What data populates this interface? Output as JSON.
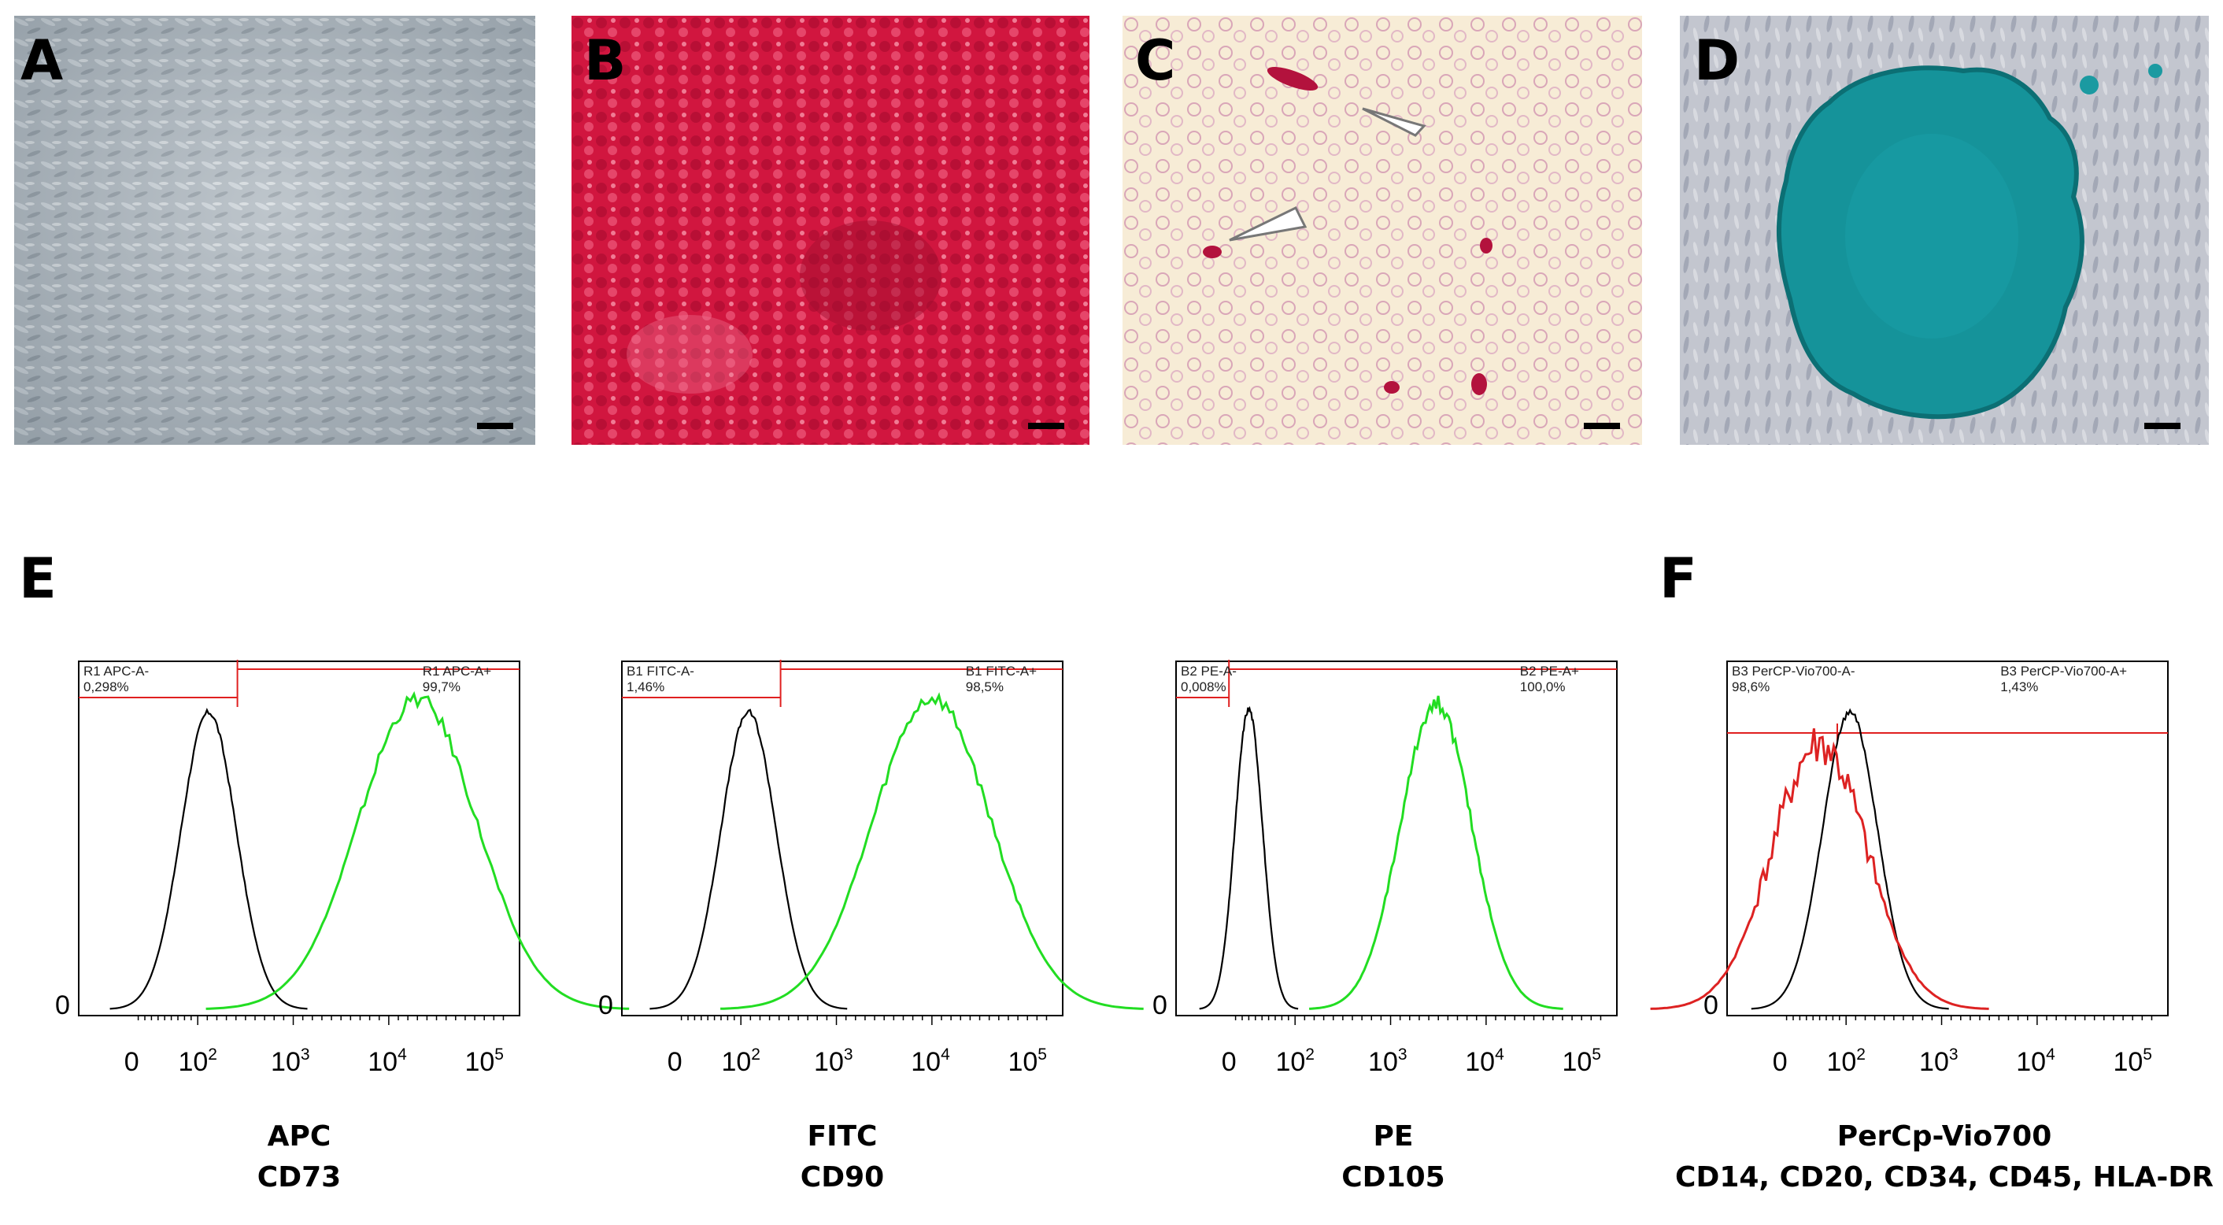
{
  "panels": [
    {
      "label": "A",
      "image": "phase-contrast-cells"
    },
    {
      "label": "B",
      "image": "red-stained-osteogenic"
    },
    {
      "label": "C",
      "image": "red-stained-adipogenic-with-arrowheads"
    },
    {
      "label": "D",
      "image": "blue-stained-chondrogenic-nodule"
    }
  ],
  "section_labels": {
    "e": "E",
    "f": "F"
  },
  "chart_data": [
    {
      "type": "histogram",
      "panel": "E",
      "x_scale": "biexponential",
      "x_ticks": [
        "0",
        "10^2",
        "10^3",
        "10^4",
        "10^5"
      ],
      "y_tick": "0",
      "xlabel": "APC",
      "xlabel2": "CD73",
      "gates": [
        {
          "name": "R1 APC-A-",
          "value": "0,298%"
        },
        {
          "name": "R1 APC-A+",
          "value": "99,7%"
        }
      ],
      "series": [
        {
          "color": "#000000",
          "role": "control",
          "peak_x": 130
        },
        {
          "color": "#22dd22",
          "role": "stained",
          "peak_x": 20000
        }
      ]
    },
    {
      "type": "histogram",
      "panel": "E",
      "x_scale": "biexponential",
      "x_ticks": [
        "0",
        "10^2",
        "10^3",
        "10^4",
        "10^5"
      ],
      "y_tick": "0",
      "xlabel": "FITC",
      "xlabel2": "CD90",
      "gates": [
        {
          "name": "B1 FITC-A-",
          "value": "1,46%"
        },
        {
          "name": "B1 FITC-A+",
          "value": "98,5%"
        }
      ],
      "series": [
        {
          "color": "#000000",
          "role": "control",
          "peak_x": 120
        },
        {
          "color": "#22dd22",
          "role": "stained",
          "peak_x": 10000
        }
      ]
    },
    {
      "type": "histogram",
      "panel": "E",
      "x_scale": "biexponential",
      "x_ticks": [
        "0",
        "10^2",
        "10^3",
        "10^4",
        "10^5"
      ],
      "y_tick": "0",
      "xlabel": "PE",
      "xlabel2": "CD105",
      "gates": [
        {
          "name": "B2 PE-A-",
          "value": "0,008%"
        },
        {
          "name": "B2 PE-A+",
          "value": "100,0%"
        }
      ],
      "series": [
        {
          "color": "#000000",
          "role": "control",
          "peak_x": 30
        },
        {
          "color": "#22dd22",
          "role": "stained",
          "peak_x": 3000
        }
      ]
    },
    {
      "type": "histogram",
      "panel": "F",
      "x_scale": "biexponential",
      "x_ticks": [
        "0",
        "10^2",
        "10^3",
        "10^4",
        "10^5"
      ],
      "y_tick": "0",
      "xlabel": "PerCp-Vio700",
      "xlabel2": "CD14, CD20, CD34, CD45, HLA-DR",
      "gates": [
        {
          "name": "B3 PerCP-Vio700-A-",
          "value": "98,6%"
        },
        {
          "name": "B3 PerCP-Vio700-A+",
          "value": "1,43%"
        }
      ],
      "series": [
        {
          "color": "#000000",
          "role": "control",
          "peak_x": 110
        },
        {
          "color": "#dd2222",
          "role": "stained",
          "peak_x": 60
        }
      ]
    }
  ]
}
